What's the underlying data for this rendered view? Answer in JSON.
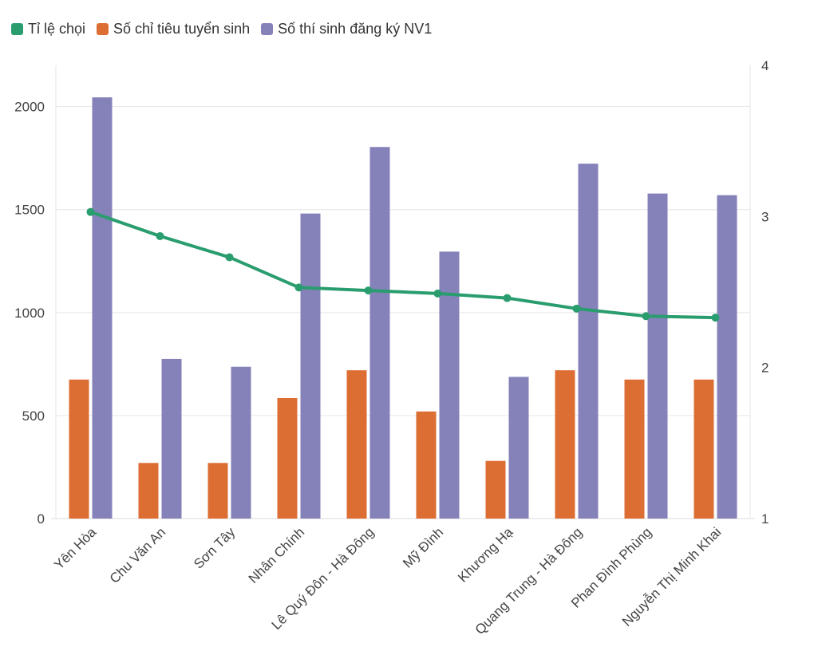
{
  "chart_data": {
    "type": "bar",
    "categories": [
      "Yên Hòa",
      "Chu Văn An",
      "Sơn Tây",
      "Nhân Chính",
      "Lê Quý Đôn - Hà Đông",
      "Mỹ Đình",
      "Khương Hạ",
      "Quang Trung - Hà Đông",
      "Phan Đình Phùng",
      "Nguyễn Thị Minh Khai"
    ],
    "series": [
      {
        "name": "Tỉ lệ chọi",
        "type": "line",
        "axis": "right",
        "color": "#2a9d6f",
        "values": [
          3.03,
          2.87,
          2.73,
          2.53,
          2.51,
          2.49,
          2.46,
          2.39,
          2.34,
          2.33
        ]
      },
      {
        "name": "Số chỉ tiêu tuyển sinh",
        "type": "bar",
        "axis": "left",
        "color": "#dd6e33",
        "values": [
          675,
          270,
          270,
          585,
          720,
          520,
          280,
          720,
          675,
          675
        ]
      },
      {
        "name": "Số thí sinh đăng ký NV1",
        "type": "bar",
        "axis": "left",
        "color": "#8581b9",
        "values": [
          2045,
          775,
          737,
          1481,
          1804,
          1296,
          688,
          1723,
          1578,
          1570
        ]
      }
    ],
    "yleft": {
      "ticks": [
        0,
        500,
        1000,
        1500,
        2000
      ],
      "range": [
        0,
        2200
      ]
    },
    "yright": {
      "ticks": [
        1,
        2,
        3,
        4
      ],
      "range": [
        1,
        4
      ]
    },
    "legend_position": "top-left",
    "grid": true
  }
}
